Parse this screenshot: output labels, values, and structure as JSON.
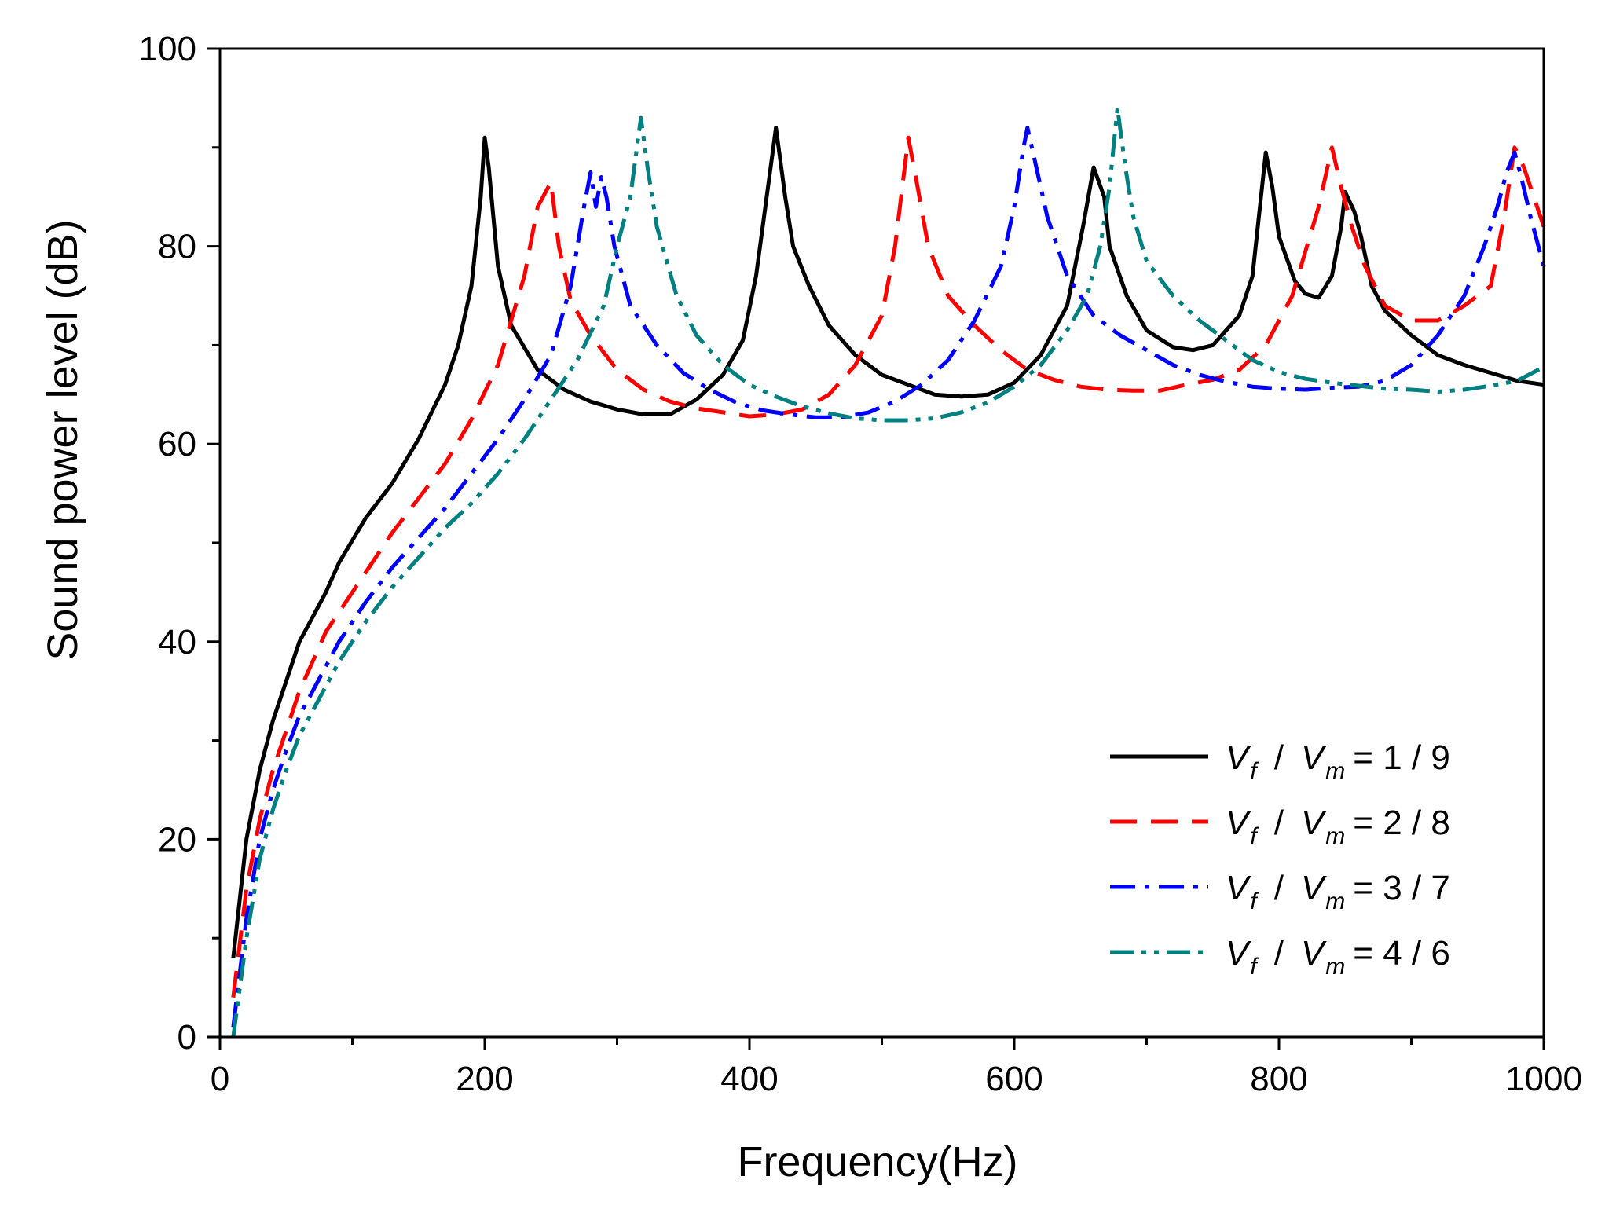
{
  "chart_data": {
    "type": "line",
    "title": "",
    "xlabel": "Frequency(Hz)",
    "ylabel": "Sound power level (dB)",
    "xlim": [
      0,
      1000
    ],
    "ylim": [
      0,
      100
    ],
    "xticks": [
      "0",
      "200",
      "400",
      "600",
      "800",
      "1000"
    ],
    "yticks": [
      "0",
      "20",
      "40",
      "60",
      "80",
      "100"
    ],
    "legend_position": "bottom-right",
    "series": [
      {
        "name": "Vf / Vm = 1 / 9",
        "color": "#000000",
        "style": "solid",
        "legend": {
          "v1": "V",
          "s1": "f",
          "slash": "/",
          "v2": "V",
          "s2": "m",
          "rest": "= 1 / 9"
        },
        "points": [
          [
            10,
            8
          ],
          [
            20,
            20
          ],
          [
            30,
            27
          ],
          [
            40,
            32
          ],
          [
            50,
            36
          ],
          [
            60,
            40
          ],
          [
            70,
            42.5
          ],
          [
            80,
            45
          ],
          [
            90,
            48
          ],
          [
            110,
            52.5
          ],
          [
            130,
            56
          ],
          [
            150,
            60.5
          ],
          [
            170,
            66
          ],
          [
            180,
            70
          ],
          [
            190,
            76
          ],
          [
            197,
            85
          ],
          [
            200,
            91
          ],
          [
            203,
            88
          ],
          [
            210,
            78
          ],
          [
            220,
            72
          ],
          [
            240,
            67.5
          ],
          [
            260,
            65.5
          ],
          [
            280,
            64.3
          ],
          [
            300,
            63.5
          ],
          [
            320,
            63
          ],
          [
            340,
            63
          ],
          [
            360,
            64.5
          ],
          [
            380,
            67
          ],
          [
            395,
            70.5
          ],
          [
            405,
            77
          ],
          [
            413,
            85
          ],
          [
            420,
            92
          ],
          [
            427,
            85
          ],
          [
            433,
            80
          ],
          [
            445,
            76
          ],
          [
            460,
            72
          ],
          [
            480,
            69
          ],
          [
            500,
            67
          ],
          [
            520,
            66
          ],
          [
            540,
            65
          ],
          [
            560,
            64.8
          ],
          [
            580,
            65
          ],
          [
            600,
            66.2
          ],
          [
            620,
            69
          ],
          [
            640,
            74
          ],
          [
            652,
            82
          ],
          [
            660,
            88
          ],
          [
            668,
            85
          ],
          [
            672,
            80
          ],
          [
            685,
            75
          ],
          [
            700,
            71.5
          ],
          [
            720,
            69.8
          ],
          [
            735,
            69.5
          ],
          [
            750,
            70
          ],
          [
            770,
            73
          ],
          [
            780,
            77
          ],
          [
            790,
            89.5
          ],
          [
            795,
            86
          ],
          [
            800,
            81
          ],
          [
            812,
            76.5
          ],
          [
            820,
            75.2
          ],
          [
            830,
            74.8
          ],
          [
            840,
            77
          ],
          [
            847,
            82
          ],
          [
            850,
            85.5
          ],
          [
            857,
            83.5
          ],
          [
            862,
            81
          ],
          [
            870,
            76
          ],
          [
            880,
            73.5
          ],
          [
            900,
            71
          ],
          [
            920,
            69
          ],
          [
            940,
            68
          ],
          [
            960,
            67.2
          ],
          [
            980,
            66.4
          ],
          [
            1000,
            66
          ]
        ]
      },
      {
        "name": "Vf / Vm = 2 / 8",
        "color": "#ff0000",
        "style": "dashed",
        "legend": {
          "v1": "V",
          "s1": "f",
          "slash": "/",
          "v2": "V",
          "s2": "m",
          "rest": "= 2 / 8"
        },
        "points": [
          [
            10,
            4
          ],
          [
            20,
            15
          ],
          [
            30,
            22
          ],
          [
            40,
            27
          ],
          [
            50,
            31
          ],
          [
            60,
            35
          ],
          [
            70,
            38
          ],
          [
            80,
            41
          ],
          [
            90,
            43
          ],
          [
            110,
            47
          ],
          [
            130,
            51
          ],
          [
            150,
            54.5
          ],
          [
            170,
            58
          ],
          [
            190,
            62.5
          ],
          [
            210,
            68
          ],
          [
            230,
            77
          ],
          [
            240,
            84
          ],
          [
            250,
            86.5
          ],
          [
            256,
            80
          ],
          [
            265,
            74.5
          ],
          [
            280,
            71
          ],
          [
            300,
            67.5
          ],
          [
            320,
            65.5
          ],
          [
            340,
            64.3
          ],
          [
            360,
            63.6
          ],
          [
            380,
            63.2
          ],
          [
            400,
            62.8
          ],
          [
            420,
            63
          ],
          [
            440,
            63.5
          ],
          [
            460,
            65
          ],
          [
            480,
            68
          ],
          [
            500,
            73
          ],
          [
            510,
            80
          ],
          [
            520,
            91
          ],
          [
            527,
            86
          ],
          [
            535,
            80
          ],
          [
            550,
            75
          ],
          [
            570,
            72
          ],
          [
            590,
            69.5
          ],
          [
            610,
            67.5
          ],
          [
            630,
            66.5
          ],
          [
            650,
            65.8
          ],
          [
            670,
            65.5
          ],
          [
            690,
            65.4
          ],
          [
            710,
            65.4
          ],
          [
            730,
            66
          ],
          [
            750,
            66.5
          ],
          [
            770,
            67.5
          ],
          [
            790,
            70
          ],
          [
            810,
            75
          ],
          [
            830,
            84
          ],
          [
            840,
            90
          ],
          [
            847,
            86
          ],
          [
            855,
            82
          ],
          [
            865,
            78
          ],
          [
            880,
            74
          ],
          [
            900,
            72.5
          ],
          [
            920,
            72.5
          ],
          [
            940,
            74
          ],
          [
            960,
            76
          ],
          [
            970,
            83
          ],
          [
            978,
            90
          ],
          [
            985,
            88
          ],
          [
            995,
            84
          ],
          [
            1000,
            82
          ]
        ]
      },
      {
        "name": "Vf / Vm = 3 / 7",
        "color": "#0000ff",
        "style": "dashdot",
        "legend": {
          "v1": "V",
          "s1": "f",
          "slash": "/",
          "v2": "V",
          "s2": "m",
          "rest": "= 3 / 7"
        },
        "points": [
          [
            10,
            1
          ],
          [
            20,
            12
          ],
          [
            30,
            20
          ],
          [
            40,
            25
          ],
          [
            50,
            29
          ],
          [
            60,
            32.5
          ],
          [
            70,
            35
          ],
          [
            80,
            37.5
          ],
          [
            90,
            40
          ],
          [
            110,
            44
          ],
          [
            130,
            47.5
          ],
          [
            150,
            50.5
          ],
          [
            170,
            53.5
          ],
          [
            190,
            57
          ],
          [
            210,
            60.5
          ],
          [
            230,
            64.5
          ],
          [
            250,
            69
          ],
          [
            265,
            76
          ],
          [
            275,
            84
          ],
          [
            280,
            87.5
          ],
          [
            284,
            84
          ],
          [
            288,
            87
          ],
          [
            292,
            85
          ],
          [
            298,
            80
          ],
          [
            310,
            74
          ],
          [
            330,
            70
          ],
          [
            350,
            67.2
          ],
          [
            370,
            65.5
          ],
          [
            390,
            64.2
          ],
          [
            410,
            63.4
          ],
          [
            430,
            63
          ],
          [
            450,
            62.7
          ],
          [
            470,
            62.7
          ],
          [
            490,
            63.2
          ],
          [
            510,
            64.3
          ],
          [
            530,
            66
          ],
          [
            550,
            68.5
          ],
          [
            570,
            72.5
          ],
          [
            590,
            78
          ],
          [
            600,
            84
          ],
          [
            607,
            90
          ],
          [
            610,
            92
          ],
          [
            615,
            89
          ],
          [
            625,
            83
          ],
          [
            640,
            77
          ],
          [
            660,
            73
          ],
          [
            680,
            71
          ],
          [
            700,
            69.5
          ],
          [
            720,
            68
          ],
          [
            740,
            67
          ],
          [
            760,
            66.3
          ],
          [
            780,
            65.8
          ],
          [
            800,
            65.6
          ],
          [
            820,
            65.5
          ],
          [
            840,
            65.7
          ],
          [
            860,
            65.8
          ],
          [
            880,
            66.4
          ],
          [
            900,
            68
          ],
          [
            920,
            71
          ],
          [
            940,
            75
          ],
          [
            955,
            80
          ],
          [
            965,
            84
          ],
          [
            972,
            87.5
          ],
          [
            978,
            89.5
          ],
          [
            983,
            87
          ],
          [
            990,
            83
          ],
          [
            1000,
            78
          ]
        ]
      },
      {
        "name": "Vf / Vm = 4 / 6",
        "color": "#008080",
        "style": "dashdotdot",
        "legend": {
          "v1": "V",
          "s1": "f",
          "slash": "/",
          "v2": "V",
          "s2": "m",
          "rest": "= 4 / 6"
        },
        "points": [
          [
            10,
            0
          ],
          [
            20,
            10
          ],
          [
            30,
            18
          ],
          [
            40,
            23
          ],
          [
            50,
            27
          ],
          [
            60,
            30.5
          ],
          [
            70,
            33
          ],
          [
            80,
            35.5
          ],
          [
            90,
            38
          ],
          [
            110,
            42
          ],
          [
            130,
            45.5
          ],
          [
            150,
            48.5
          ],
          [
            170,
            51.5
          ],
          [
            190,
            54
          ],
          [
            210,
            57
          ],
          [
            230,
            60.5
          ],
          [
            250,
            64.5
          ],
          [
            270,
            68.5
          ],
          [
            290,
            74
          ],
          [
            300,
            80
          ],
          [
            310,
            85
          ],
          [
            318,
            93
          ],
          [
            323,
            88
          ],
          [
            330,
            82
          ],
          [
            345,
            75
          ],
          [
            360,
            71
          ],
          [
            380,
            68
          ],
          [
            400,
            66
          ],
          [
            420,
            64.8
          ],
          [
            440,
            63.8
          ],
          [
            460,
            63.1
          ],
          [
            480,
            62.6
          ],
          [
            500,
            62.4
          ],
          [
            520,
            62.4
          ],
          [
            540,
            62.6
          ],
          [
            560,
            63.2
          ],
          [
            580,
            64.2
          ],
          [
            600,
            65.8
          ],
          [
            620,
            68
          ],
          [
            640,
            71.5
          ],
          [
            655,
            75
          ],
          [
            665,
            80
          ],
          [
            672,
            86
          ],
          [
            678,
            94
          ],
          [
            684,
            88
          ],
          [
            690,
            83
          ],
          [
            700,
            78.5
          ],
          [
            720,
            75
          ],
          [
            740,
            72.5
          ],
          [
            760,
            70.5
          ],
          [
            780,
            68.5
          ],
          [
            800,
            67.3
          ],
          [
            820,
            66.6
          ],
          [
            840,
            66.2
          ],
          [
            860,
            65.9
          ],
          [
            880,
            65.6
          ],
          [
            900,
            65.5
          ],
          [
            920,
            65.3
          ],
          [
            940,
            65.5
          ],
          [
            960,
            65.9
          ],
          [
            980,
            66.4
          ],
          [
            1000,
            67.8
          ]
        ]
      }
    ]
  }
}
